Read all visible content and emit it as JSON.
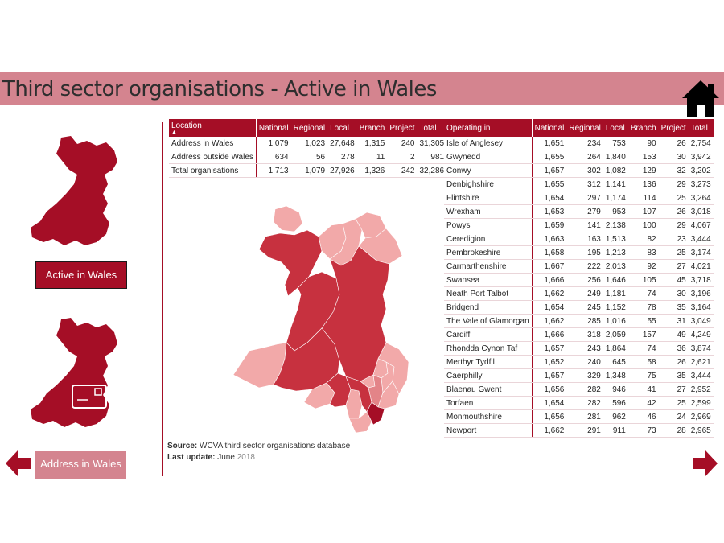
{
  "header": {
    "title": "Third sector organisations - Active in Wales",
    "home_icon": "home-icon"
  },
  "left_panel": {
    "active_button_label": "Active in Wales",
    "address_button_label": "Address in Wales",
    "prev_icon": "arrow-left-icon",
    "next_icon": "arrow-right-icon"
  },
  "location_table": {
    "headers": [
      "Location",
      "National",
      "Regional",
      "Local",
      "Branch",
      "Project",
      "Total"
    ],
    "rows": [
      [
        "Address in Wales",
        "1,079",
        "1,023",
        "27,648",
        "1,315",
        "240",
        "31,305"
      ],
      [
        "Address outside Wales",
        "634",
        "56",
        "278",
        "11",
        "2",
        "981"
      ],
      [
        "Total organisations",
        "1,713",
        "1,079",
        "27,926",
        "1,326",
        "242",
        "32,286"
      ]
    ]
  },
  "operating_table": {
    "headers": [
      "Operating in",
      "National",
      "Regional",
      "Local",
      "Branch",
      "Project",
      "Total"
    ],
    "rows": [
      [
        "Isle of Anglesey",
        "1,651",
        "234",
        "753",
        "90",
        "26",
        "2,754"
      ],
      [
        "Gwynedd",
        "1,655",
        "264",
        "1,840",
        "153",
        "30",
        "3,942"
      ],
      [
        "Conwy",
        "1,657",
        "302",
        "1,082",
        "129",
        "32",
        "3,202"
      ],
      [
        "Denbighshire",
        "1,655",
        "312",
        "1,141",
        "136",
        "29",
        "3,273"
      ],
      [
        "Flintshire",
        "1,654",
        "297",
        "1,174",
        "114",
        "25",
        "3,264"
      ],
      [
        "Wrexham",
        "1,653",
        "279",
        "953",
        "107",
        "26",
        "3,018"
      ],
      [
        "Powys",
        "1,659",
        "141",
        "2,138",
        "100",
        "29",
        "4,067"
      ],
      [
        "Ceredigion",
        "1,663",
        "163",
        "1,513",
        "82",
        "23",
        "3,444"
      ],
      [
        "Pembrokeshire",
        "1,658",
        "195",
        "1,213",
        "83",
        "25",
        "3,174"
      ],
      [
        "Carmarthenshire",
        "1,667",
        "222",
        "2,013",
        "92",
        "27",
        "4,021"
      ],
      [
        "Swansea",
        "1,666",
        "256",
        "1,646",
        "105",
        "45",
        "3,718"
      ],
      [
        "Neath Port Talbot",
        "1,662",
        "249",
        "1,181",
        "74",
        "30",
        "3,196"
      ],
      [
        "Bridgend",
        "1,654",
        "245",
        "1,152",
        "78",
        "35",
        "3,164"
      ],
      [
        "The Vale of Glamorgan",
        "1,662",
        "285",
        "1,016",
        "55",
        "31",
        "3,049"
      ],
      [
        "Cardiff",
        "1,666",
        "318",
        "2,059",
        "157",
        "49",
        "4,249"
      ],
      [
        "Rhondda Cynon Taf",
        "1,657",
        "243",
        "1,864",
        "74",
        "36",
        "3,874"
      ],
      [
        "Merthyr Tydfil",
        "1,652",
        "240",
        "645",
        "58",
        "26",
        "2,621"
      ],
      [
        "Caerphilly",
        "1,657",
        "329",
        "1,348",
        "75",
        "35",
        "3,444"
      ],
      [
        "Blaenau Gwent",
        "1,656",
        "282",
        "946",
        "41",
        "27",
        "2,952"
      ],
      [
        "Torfaen",
        "1,654",
        "282",
        "596",
        "42",
        "25",
        "2,599"
      ],
      [
        "Monmouthshire",
        "1,656",
        "281",
        "962",
        "46",
        "24",
        "2,969"
      ],
      [
        "Newport",
        "1,662",
        "291",
        "911",
        "73",
        "28",
        "2,965"
      ]
    ]
  },
  "source": {
    "source_label": "Source:",
    "source_text": "WCVA third sector organisations database",
    "update_label": "Last update:",
    "update_month": "June",
    "update_year": "2018"
  },
  "colors": {
    "brand_dark": "#a50e26",
    "brand_light": "#d4848f",
    "map_dark": "#c7313f",
    "map_mid": "#e38488",
    "map_light": "#f2a9a9"
  }
}
